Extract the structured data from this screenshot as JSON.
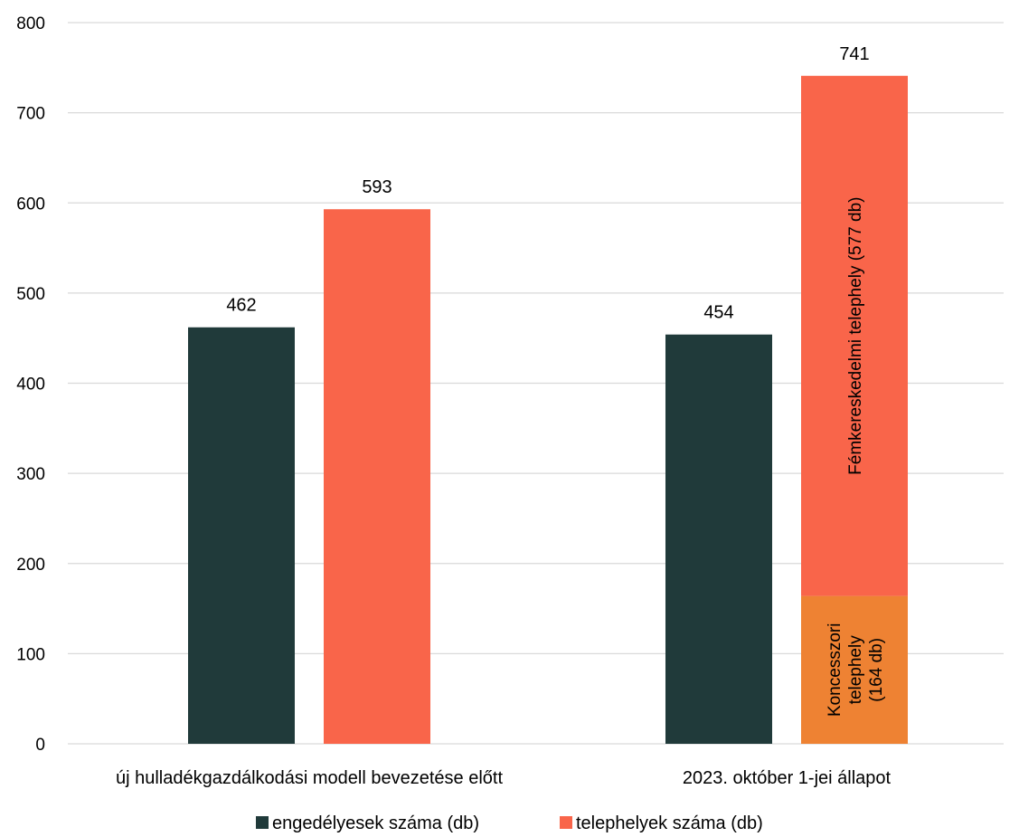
{
  "chart_data": {
    "type": "bar",
    "categories": [
      "új hulladékgazdálkodási modell bevezetése előtt",
      "2023. október 1-jei állapot"
    ],
    "series": [
      {
        "name": "engedélyesek száma (db)",
        "color": "#203a3a",
        "values": [
          462,
          454
        ]
      },
      {
        "name": "telephelyek száma (db)",
        "color": "#f9654a",
        "values": [
          593,
          741
        ]
      }
    ],
    "data_labels": [
      [
        "462",
        "454"
      ],
      [
        "593",
        "741"
      ]
    ],
    "stack_breakdown": {
      "category_index": 1,
      "series_index": 1,
      "segments": [
        {
          "label": [
            "Koncesszori",
            "telephely",
            "(164 db)"
          ],
          "value": 164,
          "color": "#ee8233"
        },
        {
          "label": [
            "Fémkereskedelmi telephely (577 db)"
          ],
          "value": 577,
          "color": "#f9654a"
        }
      ]
    },
    "ylim": [
      0,
      800
    ],
    "yticks": [
      0,
      100,
      200,
      300,
      400,
      500,
      600,
      700,
      800
    ],
    "grid": true,
    "legend_position": "bottom"
  }
}
